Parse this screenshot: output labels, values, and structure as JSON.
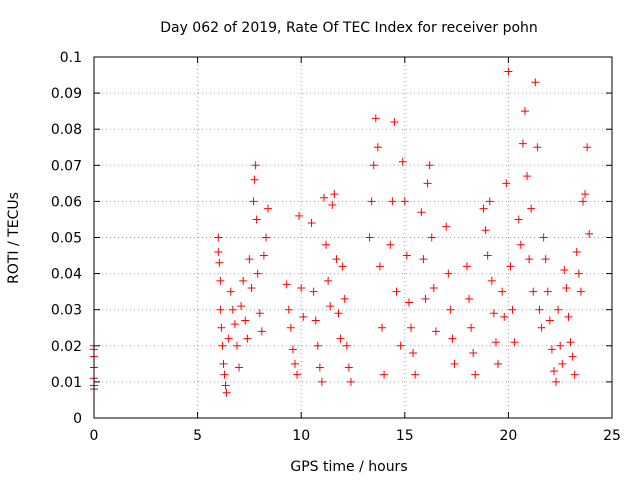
{
  "chart_data": {
    "type": "scatter",
    "title": "Day 062 of 2019, Rate Of TEC Index for receiver pohn",
    "xlabel": "GPS time / hours",
    "ylabel": "ROTI / TECUs",
    "xlim": [
      0,
      25
    ],
    "ylim": [
      0,
      0.1
    ],
    "xticks": [
      0,
      5,
      10,
      15,
      20,
      25
    ],
    "xtick_labels": [
      "0",
      "5",
      "10",
      "15",
      "20",
      "25"
    ],
    "yticks": [
      0,
      0.01,
      0.02,
      0.03,
      0.04,
      0.05,
      0.06,
      0.07,
      0.08,
      0.09,
      0.1
    ],
    "ytick_labels": [
      "0",
      "0.01",
      "0.02",
      "0.03",
      "0.04",
      "0.05",
      "0.06",
      "0.07",
      "0.08",
      "0.09",
      "0.1"
    ],
    "grid": true,
    "marker": "+",
    "color": "#ff0000",
    "series": [
      {
        "name": "ROTI",
        "x": [
          0.0,
          0.0,
          0.0,
          0.0,
          0.0,
          0.0,
          0.0,
          6.0,
          6.0,
          6.05,
          6.1,
          6.1,
          6.15,
          6.2,
          6.25,
          6.3,
          6.35,
          6.4,
          6.5,
          6.6,
          6.7,
          6.8,
          6.9,
          7.0,
          7.1,
          7.2,
          7.3,
          7.4,
          7.5,
          7.6,
          7.7,
          7.75,
          7.8,
          7.85,
          7.9,
          8.0,
          8.1,
          8.2,
          8.3,
          8.4,
          9.3,
          9.4,
          9.5,
          9.6,
          9.7,
          9.8,
          9.9,
          10.0,
          10.1,
          10.5,
          10.6,
          10.7,
          10.8,
          10.9,
          11.0,
          11.1,
          11.2,
          11.3,
          11.4,
          11.5,
          11.6,
          11.7,
          11.8,
          11.9,
          12.0,
          12.1,
          12.2,
          12.3,
          12.4,
          13.3,
          13.4,
          13.5,
          13.6,
          13.7,
          13.8,
          13.9,
          14.0,
          14.3,
          14.4,
          14.5,
          14.6,
          14.8,
          14.9,
          15.0,
          15.1,
          15.2,
          15.3,
          15.4,
          15.5,
          15.8,
          15.9,
          16.0,
          16.1,
          16.2,
          16.3,
          16.4,
          16.5,
          17.0,
          17.1,
          17.2,
          17.3,
          17.4,
          18.0,
          18.1,
          18.2,
          18.3,
          18.4,
          18.8,
          18.9,
          19.0,
          19.1,
          19.2,
          19.3,
          19.4,
          19.5,
          19.7,
          19.8,
          19.9,
          20.0,
          20.1,
          20.2,
          20.3,
          20.5,
          20.6,
          20.7,
          20.8,
          20.9,
          21.0,
          21.1,
          21.2,
          21.3,
          21.4,
          21.5,
          21.6,
          21.7,
          21.8,
          21.9,
          22.0,
          22.1,
          22.2,
          22.3,
          22.4,
          22.5,
          22.6,
          22.7,
          22.8,
          22.9,
          23.0,
          23.1,
          23.2,
          23.3,
          23.4,
          23.5,
          23.6,
          23.7,
          23.8,
          23.9
        ],
        "y": [
          0.02,
          0.019,
          0.017,
          0.014,
          0.011,
          0.009,
          0.008,
          0.05,
          0.046,
          0.043,
          0.038,
          0.03,
          0.025,
          0.02,
          0.015,
          0.012,
          0.009,
          0.007,
          0.022,
          0.035,
          0.03,
          0.026,
          0.02,
          0.014,
          0.031,
          0.038,
          0.027,
          0.022,
          0.044,
          0.036,
          0.06,
          0.066,
          0.07,
          0.055,
          0.04,
          0.029,
          0.024,
          0.045,
          0.05,
          0.058,
          0.037,
          0.03,
          0.025,
          0.019,
          0.015,
          0.012,
          0.056,
          0.036,
          0.028,
          0.054,
          0.035,
          0.027,
          0.02,
          0.014,
          0.01,
          0.061,
          0.048,
          0.038,
          0.031,
          0.059,
          0.062,
          0.044,
          0.029,
          0.022,
          0.042,
          0.033,
          0.02,
          0.014,
          0.01,
          0.05,
          0.06,
          0.07,
          0.083,
          0.075,
          0.042,
          0.025,
          0.012,
          0.048,
          0.06,
          0.082,
          0.035,
          0.02,
          0.071,
          0.06,
          0.045,
          0.032,
          0.025,
          0.018,
          0.012,
          0.057,
          0.044,
          0.033,
          0.065,
          0.07,
          0.05,
          0.036,
          0.024,
          0.053,
          0.04,
          0.03,
          0.022,
          0.015,
          0.042,
          0.033,
          0.025,
          0.018,
          0.012,
          0.058,
          0.052,
          0.045,
          0.06,
          0.038,
          0.029,
          0.021,
          0.015,
          0.035,
          0.028,
          0.065,
          0.096,
          0.042,
          0.03,
          0.021,
          0.055,
          0.048,
          0.076,
          0.085,
          0.067,
          0.044,
          0.058,
          0.035,
          0.093,
          0.075,
          0.03,
          0.025,
          0.05,
          0.044,
          0.035,
          0.027,
          0.019,
          0.013,
          0.01,
          0.03,
          0.02,
          0.015,
          0.041,
          0.036,
          0.028,
          0.021,
          0.017,
          0.012,
          0.046,
          0.04,
          0.035,
          0.06,
          0.062,
          0.075,
          0.051
        ]
      }
    ]
  }
}
